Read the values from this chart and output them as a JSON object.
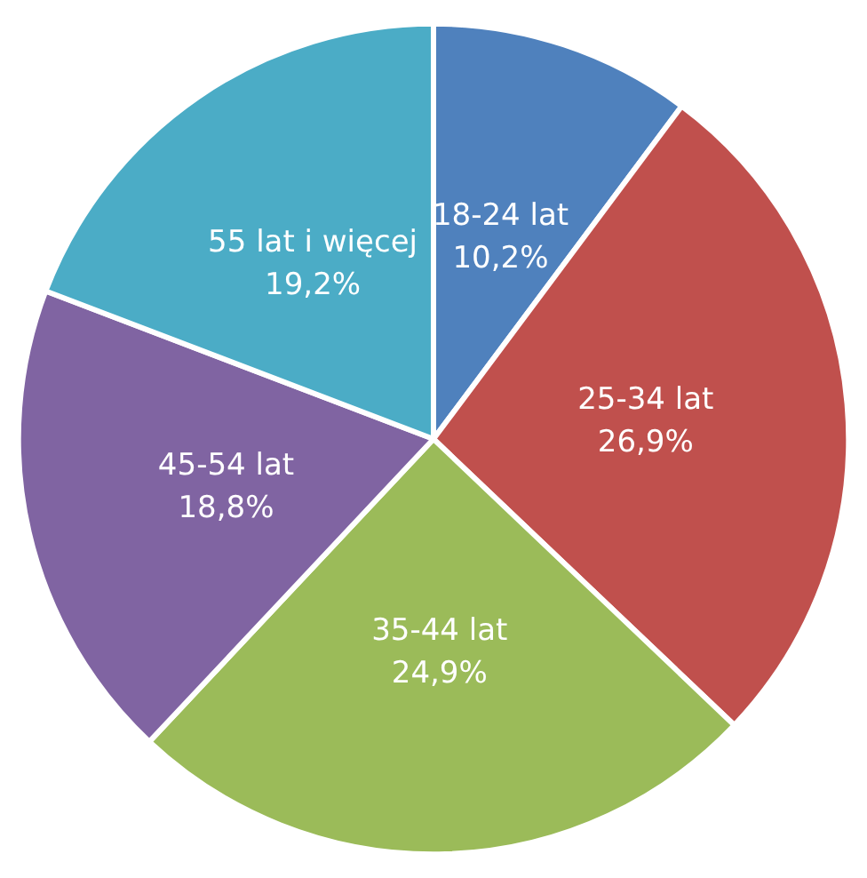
{
  "chart_data": {
    "type": "pie",
    "categories": [
      "18-24 lat",
      "25-34 lat",
      "35-44 lat",
      "45-54 lat",
      "55 lat i więcej"
    ],
    "values": [
      10.2,
      26.9,
      24.9,
      18.8,
      19.2
    ],
    "value_labels": [
      "10,2%",
      "26,9%",
      "24,9%",
      "18,8%",
      "19,2%"
    ],
    "colors": [
      "#4f81bd",
      "#c0504d",
      "#9bbb59",
      "#8064a2",
      "#4bacc6"
    ],
    "legend": false
  }
}
